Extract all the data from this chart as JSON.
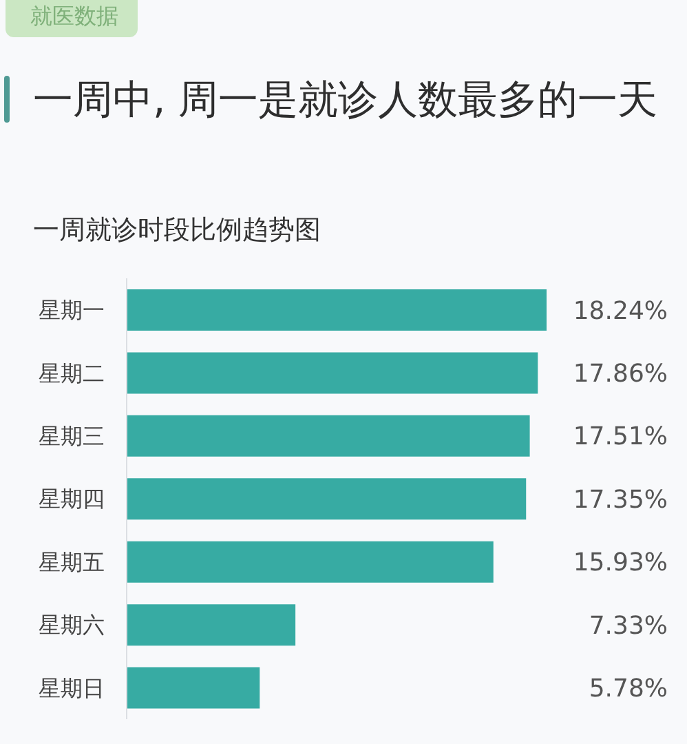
{
  "chart_data": {
    "type": "bar",
    "orientation": "horizontal",
    "title": "一周中, 周一是就诊人数最多的一天",
    "subtitle": "一周就诊时段比例趋势图",
    "annotations": [
      "就医数据"
    ],
    "categories": [
      "星期一",
      "星期二",
      "星期三",
      "星期四",
      "星期五",
      "星期六",
      "星期日"
    ],
    "values": [
      18.24,
      17.86,
      17.51,
      17.35,
      15.93,
      7.33,
      5.78
    ],
    "value_labels": [
      "18.24%",
      "17.86%",
      "17.51%",
      "17.35%",
      "15.93%",
      "7.33%",
      "5.78%"
    ],
    "color": "#37aba3"
  }
}
